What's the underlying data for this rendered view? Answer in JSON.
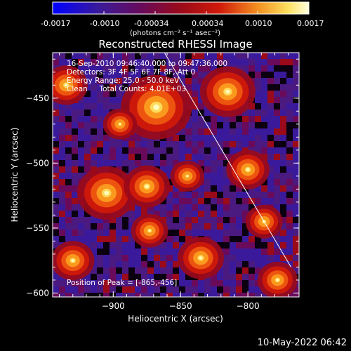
{
  "colorbar": {
    "ticks": [
      "-0.0017",
      "-0.0010",
      "-0.00034",
      "0.00034",
      "0.0010",
      "0.0017"
    ],
    "units_label": "(photons cm⁻² s⁻¹ asec⁻²)"
  },
  "image": {
    "title": "Reconstructed RHESSI Image",
    "info_lines": [
      "16-Sep-2010 09:46:40.000 to 09:47:36.000",
      "Detectors: 3F 4F 5F 6F 7F 8F, Att 0",
      "Energy Range: 25.0 - 50.0 keV",
      "Clean     Total Counts: 4.01E+03"
    ],
    "peak_text": "Position of Peak = [-865,-456]"
  },
  "chart_data": {
    "type": "heatmap",
    "title": "Reconstructed RHESSI Image",
    "xlabel": "Heliocentric X (arcsec)",
    "ylabel": "Heliocentric Y (arcsec)",
    "xlim": [
      -945,
      -762
    ],
    "ylim": [
      -603,
      -415
    ],
    "x_ticks": [
      -900,
      -850,
      -800
    ],
    "y_ticks": [
      -450,
      -500,
      -550,
      -600
    ],
    "x_tick_labels": [
      "−900",
      "−850",
      "−800"
    ],
    "y_tick_labels": [
      "−450",
      "−500",
      "−550",
      "−600"
    ],
    "colorbar_range": [
      -0.0017,
      0.0017
    ],
    "colormap": [
      "#0000ff",
      "#3a1a9a",
      "#4a1a80",
      "#6a0a5a",
      "#9a0a1a",
      "#d01a0a",
      "#f05a10",
      "#fba020",
      "#fde060",
      "#ffffc8"
    ],
    "peak": [
      -865,
      -456
    ],
    "bright_sources": [
      {
        "x": -868,
        "y": -457,
        "value": 0.0017
      },
      {
        "x": -905,
        "y": -523,
        "value": 0.0013
      },
      {
        "x": -815,
        "y": -445,
        "value": 0.0012
      },
      {
        "x": -875,
        "y": -518,
        "value": 0.0009
      },
      {
        "x": -935,
        "y": -440,
        "value": 0.0008
      },
      {
        "x": -930,
        "y": -575,
        "value": 0.0008
      },
      {
        "x": -835,
        "y": -573,
        "value": 0.0009
      },
      {
        "x": -800,
        "y": -505,
        "value": 0.0008
      },
      {
        "x": -788,
        "y": -545,
        "value": 0.0006
      },
      {
        "x": -873,
        "y": -552,
        "value": 0.0006
      },
      {
        "x": -845,
        "y": -510,
        "value": 0.0005
      },
      {
        "x": -778,
        "y": -590,
        "value": 0.0007
      },
      {
        "x": -895,
        "y": -470,
        "value": 0.0005
      }
    ],
    "limb_line": [
      [
        -862,
        -415
      ],
      [
        -768,
        -580
      ]
    ]
  },
  "footer": "10-May-2022 06:42"
}
